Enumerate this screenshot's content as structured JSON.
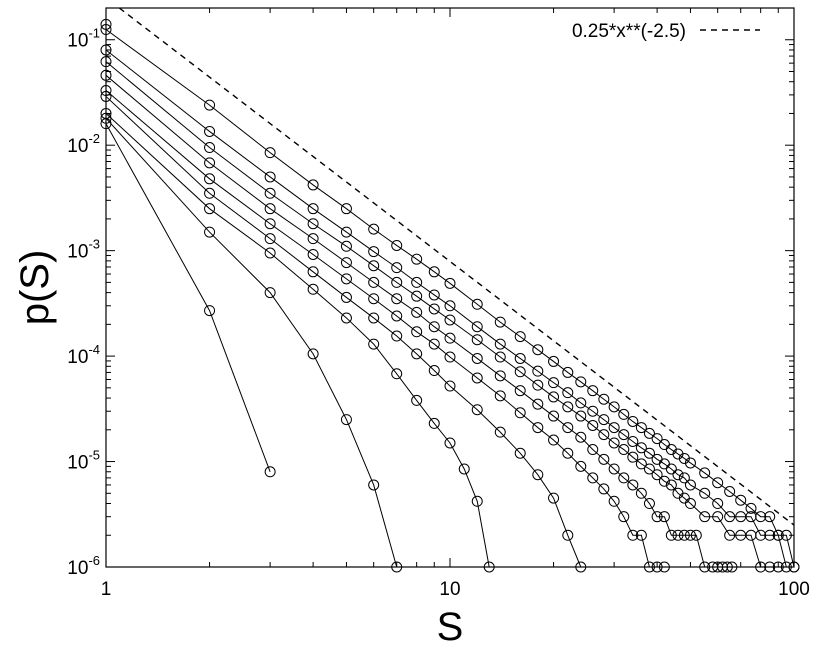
{
  "chart_data": {
    "type": "line",
    "xlabel": "S",
    "ylabel": "p(S)",
    "xscale": "log",
    "yscale": "log",
    "xlim": [
      1,
      100
    ],
    "ylim": [
      1e-06,
      0.2
    ],
    "x_ticks": [
      {
        "value": 1,
        "label": "1"
      },
      {
        "value": 10,
        "label": "10"
      },
      {
        "value": 100,
        "label": "100"
      }
    ],
    "y_ticks": [
      {
        "value": 1e-06,
        "base": "10",
        "exp": "-6"
      },
      {
        "value": 1e-05,
        "base": "10",
        "exp": "-5"
      },
      {
        "value": 0.0001,
        "base": "10",
        "exp": "-4"
      },
      {
        "value": 0.001,
        "base": "10",
        "exp": "-3"
      },
      {
        "value": 0.01,
        "base": "10",
        "exp": "-2"
      },
      {
        "value": 0.1,
        "base": "10",
        "exp": "-1"
      }
    ],
    "legend": {
      "position": "top-right",
      "label": "0.25*x**(-2.5)"
    },
    "reference_line": {
      "coef": 0.25,
      "exponent": -2.5,
      "style": "dashed",
      "color": "#000000"
    },
    "series_color": "#000000",
    "marker": "open-circle",
    "grid": false,
    "series": [
      {
        "x": [
          1,
          2,
          3
        ],
        "values": [
          0.016,
          0.00027,
          8e-06
        ]
      },
      {
        "x": [
          1,
          2,
          3,
          4,
          5,
          6,
          7
        ],
        "values": [
          0.018,
          0.0015,
          0.0004,
          0.000105,
          2.5e-05,
          6e-06,
          1e-06
        ]
      },
      {
        "x": [
          1,
          2,
          3,
          4,
          5,
          6,
          7,
          8,
          9,
          10,
          11,
          12,
          13
        ],
        "values": [
          0.02,
          0.0025,
          0.00095,
          0.00043,
          0.00023,
          0.00013,
          6.8e-05,
          3.8e-05,
          2.3e-05,
          1.5e-05,
          8.5e-06,
          4.2e-06,
          1e-06
        ]
      },
      {
        "x": [
          1,
          2,
          3,
          4,
          5,
          6,
          7,
          8,
          9,
          10,
          12,
          14,
          16,
          18,
          20,
          22,
          24
        ],
        "values": [
          0.029,
          0.0035,
          0.0013,
          0.00063,
          0.00036,
          0.00023,
          0.000155,
          0.000105,
          7.3e-05,
          5.2e-05,
          3.1e-05,
          1.9e-05,
          1.2e-05,
          7.5e-06,
          4.5e-06,
          2e-06,
          1e-06
        ]
      },
      {
        "x": [
          1,
          2,
          3,
          4,
          5,
          6,
          7,
          8,
          9,
          10,
          12,
          14,
          16,
          18,
          20,
          22,
          24,
          26,
          28,
          30,
          32,
          34,
          36,
          38,
          40,
          42
        ],
        "values": [
          0.033,
          0.0048,
          0.0018,
          0.00092,
          0.00054,
          0.00035,
          0.00024,
          0.00017,
          0.00013,
          9.8e-05,
          6.2e-05,
          4.2e-05,
          2.9e-05,
          2.1e-05,
          1.6e-05,
          1.2e-05,
          9e-06,
          7e-06,
          5.5e-06,
          4.2e-06,
          3e-06,
          2e-06,
          2e-06,
          1e-06,
          1e-06,
          1e-06
        ]
      },
      {
        "x": [
          1,
          2,
          3,
          4,
          5,
          6,
          7,
          8,
          9,
          10,
          12,
          14,
          16,
          18,
          20,
          22,
          24,
          26,
          28,
          30,
          32,
          34,
          36,
          38,
          40,
          42,
          44,
          46,
          48,
          50,
          52,
          55,
          58,
          60,
          62,
          64,
          66
        ],
        "values": [
          0.046,
          0.0068,
          0.0025,
          0.0013,
          0.00077,
          0.0005,
          0.00035,
          0.00026,
          0.00019,
          0.000148,
          9.5e-05,
          6.5e-05,
          4.7e-05,
          3.5e-05,
          2.7e-05,
          2.1e-05,
          1.7e-05,
          1.3e-05,
          1.05e-05,
          8.5e-06,
          7e-06,
          6e-06,
          5e-06,
          4e-06,
          3e-06,
          3e-06,
          2e-06,
          2e-06,
          2e-06,
          2e-06,
          2e-06,
          1e-06,
          1e-06,
          1e-06,
          1e-06,
          1e-06,
          1e-06
        ]
      },
      {
        "x": [
          1,
          2,
          3,
          4,
          5,
          6,
          7,
          8,
          9,
          10,
          12,
          14,
          16,
          18,
          20,
          22,
          24,
          26,
          28,
          30,
          32,
          34,
          36,
          38,
          40,
          42,
          44,
          46,
          48,
          50,
          55,
          60,
          65,
          70,
          75,
          80,
          85,
          90
        ],
        "values": [
          0.062,
          0.0095,
          0.0035,
          0.0018,
          0.0011,
          0.00072,
          0.0005,
          0.00037,
          0.00028,
          0.00022,
          0.000143,
          9.8e-05,
          7.1e-05,
          5.3e-05,
          4.1e-05,
          3.3e-05,
          2.7e-05,
          2.2e-05,
          1.8e-05,
          1.5e-05,
          1.3e-05,
          1.1e-05,
          9.5e-06,
          8.5e-06,
          7.5e-06,
          6.5e-06,
          6e-06,
          5e-06,
          4.5e-06,
          4e-06,
          3e-06,
          3e-06,
          2e-06,
          2e-06,
          2e-06,
          1e-06,
          1e-06,
          1e-06
        ]
      },
      {
        "x": [
          1,
          2,
          3,
          4,
          5,
          6,
          7,
          8,
          9,
          10,
          12,
          14,
          16,
          18,
          20,
          22,
          24,
          26,
          28,
          30,
          32,
          34,
          36,
          38,
          40,
          42,
          44,
          46,
          48,
          50,
          55,
          60,
          65,
          70,
          75,
          80,
          85,
          90,
          95,
          100
        ],
        "values": [
          0.08,
          0.0135,
          0.005,
          0.0025,
          0.0015,
          0.00098,
          0.00069,
          0.0005,
          0.00038,
          0.0003,
          0.00019,
          0.00013,
          9.5e-05,
          7.2e-05,
          5.6e-05,
          4.5e-05,
          3.6e-05,
          3e-05,
          2.5e-05,
          2.1e-05,
          1.8e-05,
          1.55e-05,
          1.35e-05,
          1.2e-05,
          1.05e-05,
          9.5e-06,
          8.5e-06,
          7.5e-06,
          7e-06,
          6e-06,
          5e-06,
          4e-06,
          3e-06,
          3e-06,
          3e-06,
          2e-06,
          2e-06,
          2e-06,
          1e-06,
          1e-06
        ]
      },
      {
        "x": [
          1,
          2,
          3,
          4,
          5,
          6,
          7,
          8,
          9,
          10,
          12,
          14,
          16,
          18,
          20,
          22,
          24,
          26,
          28,
          30,
          32,
          34,
          36,
          38,
          40,
          42,
          44,
          46,
          48,
          50,
          55,
          60,
          65,
          70,
          75,
          80,
          85,
          90,
          95,
          100
        ],
        "values": [
          0.125,
          0.024,
          0.0085,
          0.0042,
          0.0025,
          0.0016,
          0.00112,
          0.00083,
          0.00063,
          0.00049,
          0.00031,
          0.00021,
          0.000153,
          0.000115,
          8.9e-05,
          7e-05,
          5.7e-05,
          4.7e-05,
          3.9e-05,
          3.3e-05,
          2.8e-05,
          2.4e-05,
          2.1e-05,
          1.85e-05,
          1.65e-05,
          1.45e-05,
          1.3e-05,
          1.18e-05,
          1.07e-05,
          9.7e-06,
          7.8e-06,
          6.3e-06,
          5.2e-06,
          4.3e-06,
          3.6e-06,
          3e-06,
          3e-06,
          2e-06,
          2e-06,
          1e-06
        ]
      },
      {
        "x": [
          1
        ],
        "values": [
          0.14
        ]
      }
    ]
  }
}
